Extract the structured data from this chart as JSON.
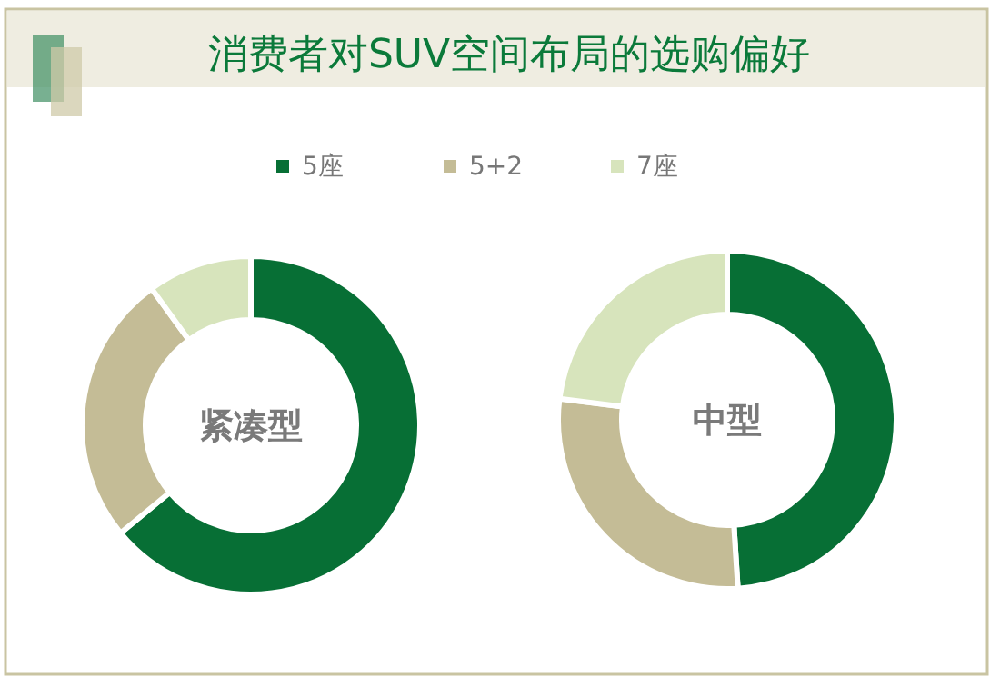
{
  "chart_data": [
    {
      "type": "donut",
      "title": "消费者对SUV空间布局的选购偏好",
      "legend": "top",
      "annotations": [
        "紧凑型"
      ],
      "categories": [
        "5座",
        "5+2",
        "7座"
      ],
      "values": [
        64,
        26,
        10
      ],
      "colors": [
        "#076f35",
        "#c4bc96",
        "#d7e4bc"
      ]
    },
    {
      "type": "donut",
      "annotations": [
        "中型"
      ],
      "categories": [
        null,
        null,
        null
      ],
      "values": [
        49,
        28,
        23
      ],
      "colors": [
        "#076f35",
        "#c4bc96",
        "#d7e4bc"
      ]
    }
  ]
}
